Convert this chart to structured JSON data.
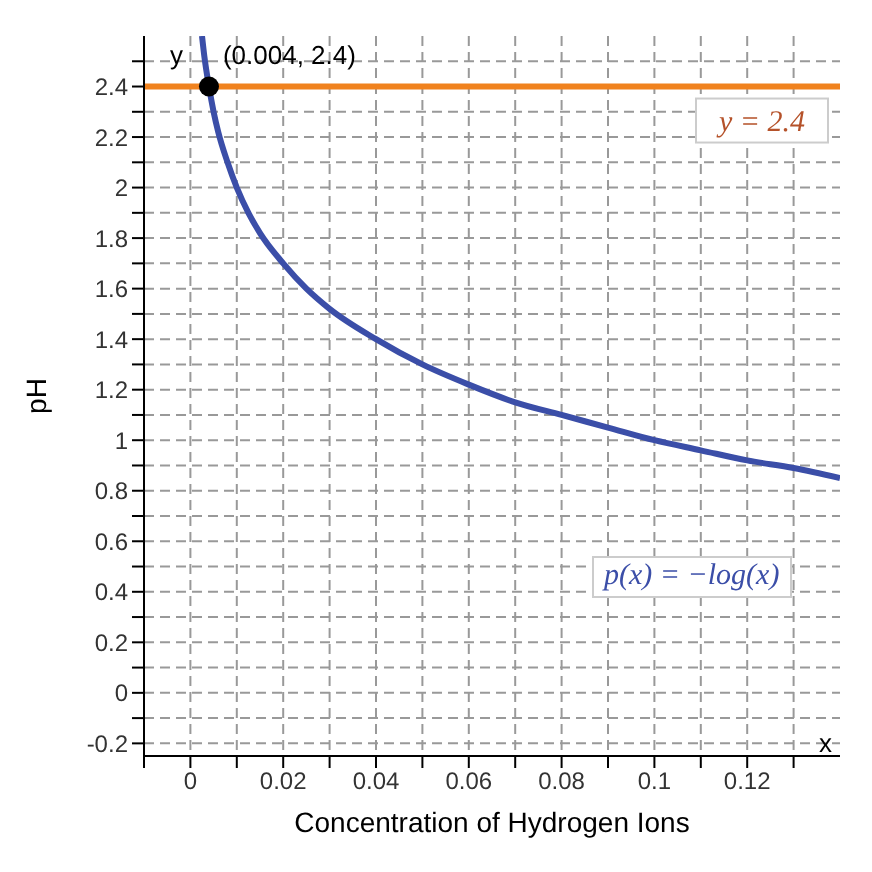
{
  "chart_data": {
    "type": "line",
    "xlabel": "Concentration of Hydrogen Ions",
    "ylabel": "pH",
    "xlim": [
      -0.01,
      0.14
    ],
    "xticks": [
      {
        "value": -0.01,
        "label": null
      },
      0,
      {
        "value": 0.01,
        "label": null
      },
      0.02,
      {
        "value": 0.03,
        "label": null
      },
      0.04,
      {
        "value": 0.05,
        "label": null
      },
      0.06,
      {
        "value": 0.07,
        "label": null
      },
      0.08,
      {
        "value": 0.09,
        "label": null
      },
      0.1,
      {
        "value": 0.11,
        "label": null
      },
      0.12,
      {
        "value": 0.13,
        "label": null
      }
    ],
    "ylim": [
      -0.25,
      2.6
    ],
    "yticks": [
      -0.2,
      {
        "value": -0.1,
        "label": null
      },
      0,
      {
        "value": 0.1,
        "label": null
      },
      0.2,
      {
        "value": 0.3,
        "label": null
      },
      0.4,
      {
        "value": 0.5,
        "label": null
      },
      0.6,
      {
        "value": 0.7,
        "label": null
      },
      0.8,
      {
        "value": 0.9,
        "label": null
      },
      1,
      {
        "value": 1.1,
        "label": null
      },
      1.2,
      {
        "value": 1.3,
        "label": null
      },
      1.4,
      {
        "value": 1.5,
        "label": null
      },
      1.6,
      {
        "value": 1.7,
        "label": null
      },
      1.8,
      {
        "value": 1.9,
        "label": null
      },
      2,
      {
        "value": 2.1,
        "label": null
      },
      2.2,
      {
        "value": 2.3,
        "label": null
      },
      2.4,
      {
        "value": 2.5,
        "label": null
      }
    ],
    "grid": true,
    "legend": false,
    "series": [
      {
        "name": "p(x) = −log(x)",
        "color": "#3b4ea8",
        "marker": "none",
        "line_style": "solid",
        "x": [
          0.0025,
          0.003,
          0.004,
          0.005,
          0.006,
          0.008,
          0.01,
          0.0125,
          0.015,
          0.02,
          0.025,
          0.03,
          0.04,
          0.05,
          0.06,
          0.07,
          0.08,
          0.09,
          0.1,
          0.11,
          0.12,
          0.13,
          0.14
        ],
        "values": [
          2.6,
          2.52,
          2.4,
          2.3,
          2.22,
          2.1,
          2,
          1.9,
          1.82,
          1.7,
          1.6,
          1.52,
          1.4,
          1.3,
          1.22,
          1.15,
          1.1,
          1.05,
          1,
          0.96,
          0.92,
          0.89,
          0.85
        ]
      },
      {
        "type": "scatter",
        "color": "#000000",
        "marker": "circle",
        "x": [
          0.004
        ],
        "values": [
          2.4
        ]
      }
    ],
    "ref_lines": [
      {
        "axis": "y",
        "value": 2.4,
        "label": "y = 2.4",
        "color": "#f0821e",
        "line_style": "solid"
      }
    ],
    "annotations": [
      {
        "text": "(0.004, 2.4)",
        "x": 0.004,
        "y": 2.4
      },
      "x",
      "y"
    ]
  }
}
